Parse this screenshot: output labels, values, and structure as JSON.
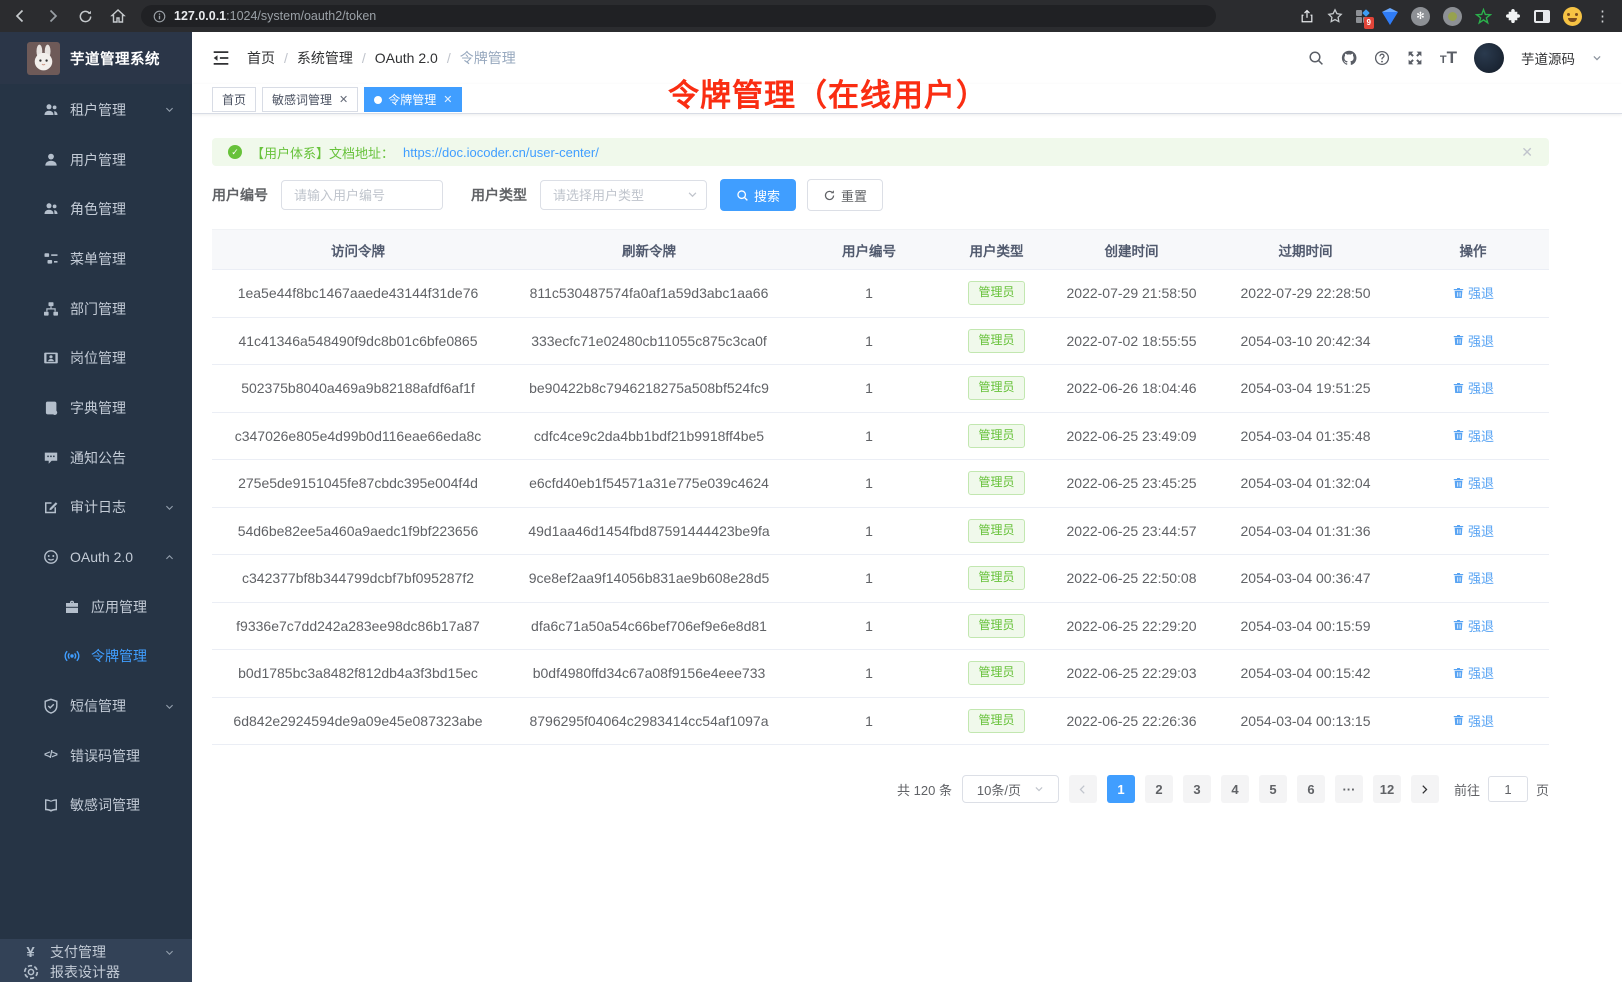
{
  "colors": {
    "accent": "#409eff",
    "success": "#67c23a",
    "annotation": "#fa2d12",
    "action_link": "#57a3f3",
    "sidebar_bg": "#263445",
    "sidebar_bottom_bg": "#334257"
  },
  "browser": {
    "url_host": "127.0.0.1",
    "url_path": ":1024/system/oauth2/token",
    "extensions": [
      "pixel-grid-extension",
      "gem-extension",
      "command-extension",
      "record-extension",
      "green-star-extension",
      "puzzle-extension",
      "side-panel",
      "emoji-extension"
    ]
  },
  "sidebar": {
    "logo_title": "芋道管理系统",
    "menu": [
      {
        "label": "租户管理",
        "icon": "tenant",
        "arrow": "down"
      },
      {
        "label": "用户管理",
        "icon": "user"
      },
      {
        "label": "角色管理",
        "icon": "role"
      },
      {
        "label": "菜单管理",
        "icon": "menu"
      },
      {
        "label": "部门管理",
        "icon": "dept"
      },
      {
        "label": "岗位管理",
        "icon": "post"
      },
      {
        "label": "字典管理",
        "icon": "dict"
      },
      {
        "label": "通知公告",
        "icon": "notice"
      },
      {
        "label": "审计日志",
        "icon": "audit",
        "arrow": "down"
      },
      {
        "label": "OAuth 2.0",
        "icon": "oauth",
        "arrow": "up"
      },
      {
        "label": "应用管理",
        "icon": "app",
        "sub": true
      },
      {
        "label": "令牌管理",
        "icon": "token",
        "sub": true,
        "active": true
      },
      {
        "label": "短信管理",
        "icon": "sms",
        "arrow": "down"
      },
      {
        "label": "错误码管理",
        "icon": "errcode"
      },
      {
        "label": "敏感词管理",
        "icon": "sensitive"
      }
    ],
    "menu_bottom": [
      {
        "label": "支付管理",
        "icon": "pay",
        "arrow": "down"
      },
      {
        "label": "报表设计器",
        "icon": "report"
      }
    ]
  },
  "header": {
    "breadcrumb": [
      "首页",
      "系统管理",
      "OAuth 2.0",
      "令牌管理"
    ],
    "icons": [
      "search",
      "github",
      "question",
      "fullscreen",
      "fontsize"
    ],
    "user_name": "芋道源码"
  },
  "tabs": [
    {
      "label": "首页"
    },
    {
      "label": "敏感词管理",
      "closable": true
    },
    {
      "label": "令牌管理",
      "closable": true,
      "active": true
    }
  ],
  "annotation": "令牌管理（在线用户）",
  "alert": {
    "text": "【用户体系】文档地址：",
    "link": "https://doc.iocoder.cn/user-center/"
  },
  "filters": {
    "user_id_label": "用户编号",
    "user_id_placeholder": "请输入用户编号",
    "user_type_label": "用户类型",
    "user_type_placeholder": "请选择用户类型",
    "search_label": "搜索",
    "reset_label": "重置"
  },
  "table": {
    "columns": [
      "访问令牌",
      "刷新令牌",
      "用户编号",
      "用户类型",
      "创建时间",
      "过期时间",
      "操作"
    ],
    "action_label": "强退",
    "rows": [
      {
        "access": "1ea5e44f8bc1467aaede43144f31de76",
        "refresh": "811c530487574fa0af1a59d3abc1aa66",
        "user_id": "1",
        "user_type": "管理员",
        "created": "2022-07-29 21:58:50",
        "expires": "2022-07-29 22:28:50"
      },
      {
        "access": "41c41346a548490f9dc8b01c6bfe0865",
        "refresh": "333ecfc71e02480cb11055c875c3ca0f",
        "user_id": "1",
        "user_type": "管理员",
        "created": "2022-07-02 18:55:55",
        "expires": "2054-03-10 20:42:34"
      },
      {
        "access": "502375b8040a469a9b82188afdf6af1f",
        "refresh": "be90422b8c7946218275a508bf524fc9",
        "user_id": "1",
        "user_type": "管理员",
        "created": "2022-06-26 18:04:46",
        "expires": "2054-03-04 19:51:25"
      },
      {
        "access": "c347026e805e4d99b0d116eae66eda8c",
        "refresh": "cdfc4ce9c2da4bb1bdf21b9918ff4be5",
        "user_id": "1",
        "user_type": "管理员",
        "created": "2022-06-25 23:49:09",
        "expires": "2054-03-04 01:35:48"
      },
      {
        "access": "275e5de9151045fe87cbdc395e004f4d",
        "refresh": "e6cfd40eb1f54571a31e775e039c4624",
        "user_id": "1",
        "user_type": "管理员",
        "created": "2022-06-25 23:45:25",
        "expires": "2054-03-04 01:32:04"
      },
      {
        "access": "54d6be82ee5a460a9aedc1f9bf223656",
        "refresh": "49d1aa46d1454fbd87591444423be9fa",
        "user_id": "1",
        "user_type": "管理员",
        "created": "2022-06-25 23:44:57",
        "expires": "2054-03-04 01:31:36"
      },
      {
        "access": "c342377bf8b344799dcbf7bf095287f2",
        "refresh": "9ce8ef2aa9f14056b831ae9b608e28d5",
        "user_id": "1",
        "user_type": "管理员",
        "created": "2022-06-25 22:50:08",
        "expires": "2054-03-04 00:36:47"
      },
      {
        "access": "f9336e7c7dd242a283ee98dc86b17a87",
        "refresh": "dfa6c71a50a54c66bef706ef9e6e8d81",
        "user_id": "1",
        "user_type": "管理员",
        "created": "2022-06-25 22:29:20",
        "expires": "2054-03-04 00:15:59"
      },
      {
        "access": "b0d1785bc3a8482f812db4a3f3bd15ec",
        "refresh": "b0df4980ffd34c67a08f9156e4eee733",
        "user_id": "1",
        "user_type": "管理员",
        "created": "2022-06-25 22:29:03",
        "expires": "2054-03-04 00:15:42"
      },
      {
        "access": "6d842e2924594de9a09e45e087323abe",
        "refresh": "8796295f04064c2983414cc54af1097a",
        "user_id": "1",
        "user_type": "管理员",
        "created": "2022-06-25 22:26:36",
        "expires": "2054-03-04 00:13:15"
      }
    ]
  },
  "pagination": {
    "total": "共 120 条",
    "page_size": "10条/页",
    "pages": [
      "1",
      "2",
      "3",
      "4",
      "5",
      "6",
      "···",
      "12"
    ],
    "active_page": "1",
    "goto_label": "前往",
    "goto_value": "1",
    "goto_unit": "页"
  }
}
